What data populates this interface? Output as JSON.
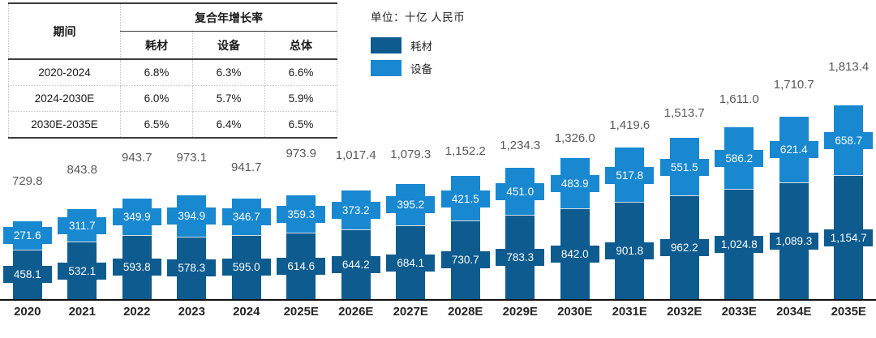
{
  "colors": {
    "consumables": "#0d5b8f",
    "equipment": "#1888d1",
    "axis": "#111111",
    "total_label": "#595959"
  },
  "cagr_table": {
    "period_header": "期间",
    "group_header": "复合年增长率",
    "sub_headers": [
      "耗材",
      "设备",
      "总体"
    ],
    "rows": [
      {
        "period": "2020-2024",
        "values": [
          "6.8%",
          "6.3%",
          "6.6%"
        ]
      },
      {
        "period": "2024-2030E",
        "values": [
          "6.0%",
          "5.7%",
          "5.9%"
        ]
      },
      {
        "period": "2030E-2035E",
        "values": [
          "6.5%",
          "6.4%",
          "6.5%"
        ]
      }
    ]
  },
  "chart_data": {
    "type": "bar",
    "stacked": true,
    "unit_label": "单位：十亿 人民币",
    "categories": [
      "2020",
      "2021",
      "2022",
      "2023",
      "2024",
      "2025E",
      "2026E",
      "2027E",
      "2028E",
      "2029E",
      "2030E",
      "2031E",
      "2032E",
      "2033E",
      "2034E",
      "2035E"
    ],
    "series": [
      {
        "name": "耗材",
        "color": "#0d5b8f",
        "values": [
          458.1,
          532.1,
          593.8,
          578.3,
          595.0,
          614.6,
          644.2,
          684.1,
          730.7,
          783.3,
          842.0,
          901.8,
          962.2,
          1024.8,
          1089.3,
          1154.7
        ]
      },
      {
        "name": "设备",
        "color": "#1888d1",
        "values": [
          271.6,
          311.7,
          349.9,
          394.9,
          346.7,
          359.3,
          373.2,
          395.2,
          421.5,
          451.0,
          483.9,
          517.8,
          551.5,
          586.2,
          621.4,
          658.7
        ]
      }
    ],
    "totals": [
      729.8,
      843.8,
      943.7,
      973.1,
      941.7,
      973.9,
      1017.4,
      1079.3,
      1152.2,
      1234.3,
      1326.0,
      1419.6,
      1513.7,
      1611.0,
      1710.7,
      1813.4
    ],
    "xlabel": "",
    "ylabel": "",
    "ylim_implied": [
      0,
      1850
    ],
    "grid": false,
    "y_axis_visible": false,
    "legend_position": "top-left",
    "value_labels": "inside-segments",
    "total_labels": "above-bars"
  }
}
